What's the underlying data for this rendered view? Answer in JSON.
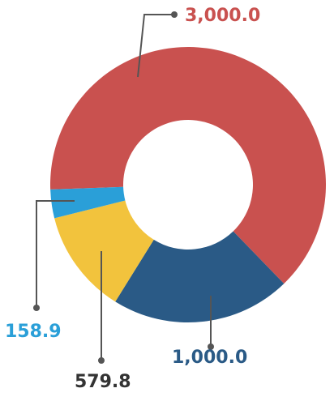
{
  "chart_data": {
    "type": "donut",
    "values": [
      3000,
      1000,
      579.8,
      158.9
    ],
    "value_labels": [
      "3,000.0",
      "1,000.0",
      "579.8",
      "158.9"
    ],
    "colors": [
      "#c9514f",
      "#2a5a86",
      "#f2c33d",
      "#2a9fd8"
    ]
  }
}
